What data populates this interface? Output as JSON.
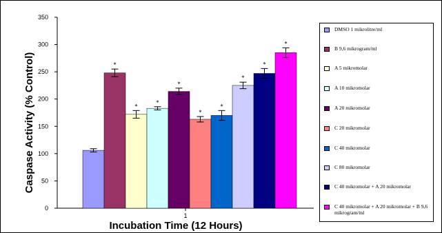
{
  "chart_data": {
    "type": "bar",
    "categories": [
      "1"
    ],
    "ylabel": "Caspase Activity (% Control)",
    "xlabel": "Incubation Time (12 Hours)",
    "ylim": [
      0,
      350
    ],
    "yticks": [
      "0",
      "50",
      "100",
      "150",
      "200",
      "250",
      "300",
      "350"
    ],
    "legend_position": "right",
    "series": [
      {
        "name": "DMSO 1 mikrolitre/ml",
        "value": 106,
        "error": 3,
        "color": "#9999ff",
        "significant": false
      },
      {
        "name": "B 9,6 mikrogram/ml",
        "value": 248,
        "error": 7,
        "color": "#993366",
        "significant": true
      },
      {
        "name": "A 5 mikromolar",
        "value": 172,
        "error": 7,
        "color": "#ffffcc",
        "significant": true
      },
      {
        "name": "A 10 mikromolar",
        "value": 183,
        "error": 3,
        "color": "#ccffff",
        "significant": true
      },
      {
        "name": "A 20 mikromolar",
        "value": 214,
        "error": 6,
        "color": "#660066",
        "significant": true
      },
      {
        "name": "C 20 mikromolar",
        "value": 163,
        "error": 5,
        "color": "#ff8080",
        "significant": true
      },
      {
        "name": "C 40 mikromolar",
        "value": 170,
        "error": 9,
        "color": "#0066cc",
        "significant": true
      },
      {
        "name": "C 80 mikromolar",
        "value": 225,
        "error": 6,
        "color": "#ccccff",
        "significant": true
      },
      {
        "name": "C 40 mikromolar + A 20 mikromolar",
        "value": 247,
        "error": 9,
        "color": "#000080",
        "significant": true
      },
      {
        "name": "C 40 mikromolar + A 20 mikromolar + B 9,6 mikrogram/ml",
        "value": 285,
        "error": 9,
        "color": "#ff00ff",
        "significant": true
      }
    ],
    "significance_marker": "*"
  }
}
